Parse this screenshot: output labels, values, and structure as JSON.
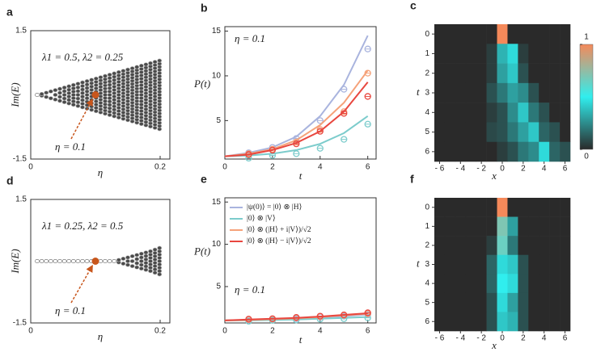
{
  "chart_data": [
    {
      "panel": "a",
      "type": "scatter",
      "xlabel": "η",
      "ylabel": "Im(E)",
      "annotations": [
        "λ1 = 0.5, λ2 = 0.25",
        "η = 0.1"
      ],
      "x": [
        0.01,
        0.017,
        0.024,
        0.031,
        0.038,
        0.045,
        0.052,
        0.059,
        0.066,
        0.073,
        0.08,
        0.087,
        0.094,
        0.101,
        0.108,
        0.115,
        0.122,
        0.129,
        0.136,
        0.143,
        0.15,
        0.157,
        0.164,
        0.171,
        0.178,
        0.185,
        0.192,
        0.199
      ],
      "values": [
        0,
        0.02,
        0.05,
        0.08,
        0.11,
        0.14,
        0.17,
        0.2,
        0.23,
        0.26,
        0.29,
        0.32,
        0.35,
        0.38,
        0.41,
        0.44,
        0.47,
        0.5,
        0.53,
        0.56,
        0.59,
        0.62,
        0.65,
        0.68,
        0.71,
        0.74,
        0.77,
        0.8
      ],
      "highlight": {
        "x": 0.1,
        "y": 0
      },
      "highlight_color": "#c8561c",
      "color": "#4a4a4a",
      "xlim": [
        0,
        0.215
      ],
      "ylim": [
        -1.5,
        1.5
      ],
      "xticks": [
        0,
        0.2
      ],
      "yticks": [
        1.5,
        -1.5
      ]
    },
    {
      "panel": "b",
      "type": "line",
      "xlabel": "t",
      "ylabel": "P(t)",
      "annotations": [
        "η = 0.1"
      ],
      "x": [
        0,
        1,
        2,
        3,
        4,
        5,
        6
      ],
      "xlim": [
        0,
        6.35
      ],
      "ylim": [
        0.7,
        15.5
      ],
      "xticks": [
        0,
        2,
        4,
        6
      ],
      "yticks": [
        5,
        10,
        15
      ],
      "series": [
        {
          "color": "#a9b4de",
          "values": [
            1,
            1.4,
            2,
            3.2,
            5.5,
            9,
            14.5
          ],
          "measured": [
            null,
            1.4,
            2,
            3,
            5,
            8.5,
            13
          ]
        },
        {
          "color": "#7ccccc",
          "values": [
            1,
            1.1,
            1.3,
            1.7,
            2.4,
            3.6,
            5.5
          ],
          "measured": [
            null,
            0.8,
            1.1,
            1.3,
            1.9,
            2.9,
            4.6
          ]
        },
        {
          "color": "#f5a27a",
          "values": [
            1,
            1.3,
            1.8,
            2.8,
            4.5,
            7,
            10.6
          ],
          "measured": [
            null,
            1.3,
            1.8,
            2.6,
            4,
            6,
            10.3
          ]
        },
        {
          "color": "#e8473f",
          "values": [
            1,
            1.2,
            1.7,
            2.5,
            3.8,
            6,
            9.3
          ],
          "measured": [
            null,
            1.2,
            1.7,
            2.4,
            3.8,
            5.8,
            7.7
          ]
        }
      ]
    },
    {
      "panel": "c",
      "type": "heatmap",
      "xlabel": "x",
      "ylabel": "t",
      "x": [
        -6,
        -5,
        -4,
        -3,
        -2,
        -1,
        0,
        1,
        2,
        3,
        4,
        5,
        6
      ],
      "y": [
        0,
        1,
        2,
        3,
        4,
        5,
        6
      ],
      "xticks": [
        {
          "value": -6,
          "label": "- 6"
        },
        {
          "value": -4,
          "label": "- 4"
        },
        {
          "value": -2,
          "label": "- 2"
        },
        0,
        2,
        4,
        6
      ],
      "yticks": [
        0,
        1,
        2,
        3,
        4,
        5,
        6
      ],
      "values": [
        [
          0,
          0,
          0,
          0,
          0,
          0,
          1,
          0,
          0,
          0,
          0,
          0,
          0
        ],
        [
          0,
          0,
          0,
          0,
          0,
          0.05,
          0.35,
          0.45,
          0.05,
          0,
          0,
          0,
          0
        ],
        [
          0,
          0,
          0,
          0,
          0,
          0.05,
          0.3,
          0.4,
          0.1,
          0,
          0,
          0,
          0
        ],
        [
          0,
          0,
          0,
          0,
          0,
          0.1,
          0.2,
          0.3,
          0.25,
          0.1,
          0,
          0,
          0
        ],
        [
          0,
          0,
          0,
          0,
          0,
          0.05,
          0.1,
          0.25,
          0.4,
          0.2,
          0.1,
          0,
          0
        ],
        [
          0,
          0,
          0,
          0,
          0,
          0.08,
          0.1,
          0.2,
          0.3,
          0.4,
          0.15,
          0.1,
          0
        ],
        [
          0,
          0,
          0,
          0,
          0,
          0,
          0.05,
          0.1,
          0.2,
          0.25,
          0.45,
          0.15,
          0.1
        ]
      ],
      "colorscale": [
        "#2a2a2a",
        "#30eeee",
        "#f5895a"
      ],
      "colorbar": {
        "ticks": [
          1,
          0
        ]
      }
    },
    {
      "panel": "d",
      "type": "scatter",
      "xlabel": "η",
      "ylabel": "Im(E)",
      "annotations": [
        "λ1 = 0.25, λ2 = 0.5",
        "η = 0.1"
      ],
      "x": [
        0.01,
        0.017,
        0.024,
        0.031,
        0.038,
        0.045,
        0.052,
        0.059,
        0.066,
        0.073,
        0.08,
        0.087,
        0.094,
        0.101,
        0.108,
        0.115,
        0.122,
        0.129,
        0.136,
        0.143,
        0.15,
        0.157,
        0.164,
        0.171,
        0.178,
        0.185,
        0.192,
        0.199
      ],
      "values": [
        0,
        0,
        0,
        0,
        0,
        0,
        0,
        0,
        0,
        0,
        0,
        0,
        0,
        0,
        0,
        0,
        0,
        0,
        0.03,
        0.06,
        0.09,
        0.12,
        0.15,
        0.18,
        0.21,
        0.24,
        0.28,
        0.32
      ],
      "highlight": {
        "x": 0.1,
        "y": 0
      },
      "highlight_color": "#c8561c",
      "color": "#4a4a4a",
      "xlim": [
        0,
        0.215
      ],
      "ylim": [
        -1.5,
        1.5
      ],
      "xticks": [
        0,
        0.2
      ],
      "yticks": [
        1.5,
        -1.5
      ]
    },
    {
      "panel": "e",
      "type": "line",
      "xlabel": "t",
      "ylabel": "P(t)",
      "annotations": [
        "η = 0.1"
      ],
      "x": [
        0,
        1,
        2,
        3,
        4,
        5,
        6
      ],
      "xlim": [
        0,
        6.35
      ],
      "ylim": [
        0.7,
        15.5
      ],
      "xticks": [
        0,
        2,
        4,
        6
      ],
      "yticks": [
        5,
        10,
        15
      ],
      "series": [
        {
          "name": "|ψ(0)⟩ = |0⟩ ⊗ |H⟩",
          "color": "#a9b4de",
          "values": [
            1,
            1.05,
            1.1,
            1.2,
            1.35,
            1.5,
            1.7
          ],
          "measured": [
            null,
            1.05,
            1.1,
            1.2,
            1.4,
            1.5,
            1.7
          ]
        },
        {
          "name": "|0⟩ ⊗ |V⟩",
          "color": "#7ccccc",
          "values": [
            1,
            1,
            1.05,
            1.1,
            1.2,
            1.3,
            1.4
          ],
          "measured": [
            null,
            0.9,
            1,
            1.05,
            1.15,
            1.2,
            1.3
          ]
        },
        {
          "name": "|0⟩ ⊗ (|H⟩ + i|V⟩)/√2",
          "color": "#f5a27a",
          "values": [
            1,
            1.05,
            1.15,
            1.25,
            1.4,
            1.6,
            1.8
          ],
          "measured": [
            null,
            1.1,
            1.15,
            1.3,
            1.45,
            1.6,
            1.8
          ]
        },
        {
          "name": "|0⟩ ⊗ (|H⟩ − i|V⟩)/√2",
          "color": "#e8473f",
          "values": [
            1,
            1.1,
            1.2,
            1.3,
            1.45,
            1.65,
            1.85
          ],
          "measured": [
            null,
            1.15,
            1.2,
            1.35,
            1.5,
            1.65,
            1.9
          ]
        }
      ]
    },
    {
      "panel": "f",
      "type": "heatmap",
      "xlabel": "x",
      "ylabel": "t",
      "x": [
        -6,
        -5,
        -4,
        -3,
        -2,
        -1,
        0,
        1,
        2,
        3,
        4,
        5,
        6
      ],
      "y": [
        0,
        1,
        2,
        3,
        4,
        5,
        6
      ],
      "xticks": [
        {
          "value": -6,
          "label": "- 6"
        },
        {
          "value": -4,
          "label": "- 4"
        },
        {
          "value": -2,
          "label": "- 2"
        },
        0,
        2,
        4,
        6
      ],
      "yticks": [
        0,
        1,
        2,
        3,
        4,
        5,
        6
      ],
      "values": [
        [
          0,
          0,
          0,
          0,
          0,
          0,
          1,
          0,
          0,
          0,
          0,
          0,
          0
        ],
        [
          0,
          0,
          0,
          0,
          0,
          0,
          0.7,
          0.3,
          0,
          0,
          0,
          0,
          0
        ],
        [
          0,
          0,
          0,
          0,
          0,
          0.05,
          0.65,
          0.2,
          0,
          0,
          0,
          0,
          0
        ],
        [
          0,
          0,
          0,
          0,
          0,
          0.15,
          0.45,
          0.4,
          0.1,
          0,
          0,
          0,
          0
        ],
        [
          0,
          0,
          0,
          0,
          0,
          0.15,
          0.5,
          0.45,
          0.1,
          0,
          0,
          0,
          0
        ],
        [
          0,
          0,
          0,
          0,
          0,
          0.1,
          0.45,
          0.3,
          0.1,
          0,
          0,
          0,
          0
        ],
        [
          0,
          0,
          0,
          0,
          0,
          0.1,
          0.4,
          0.35,
          0.1,
          0,
          0,
          0,
          0
        ]
      ],
      "colorscale": [
        "#2a2a2a",
        "#30eeee",
        "#f5895a"
      ]
    }
  ]
}
